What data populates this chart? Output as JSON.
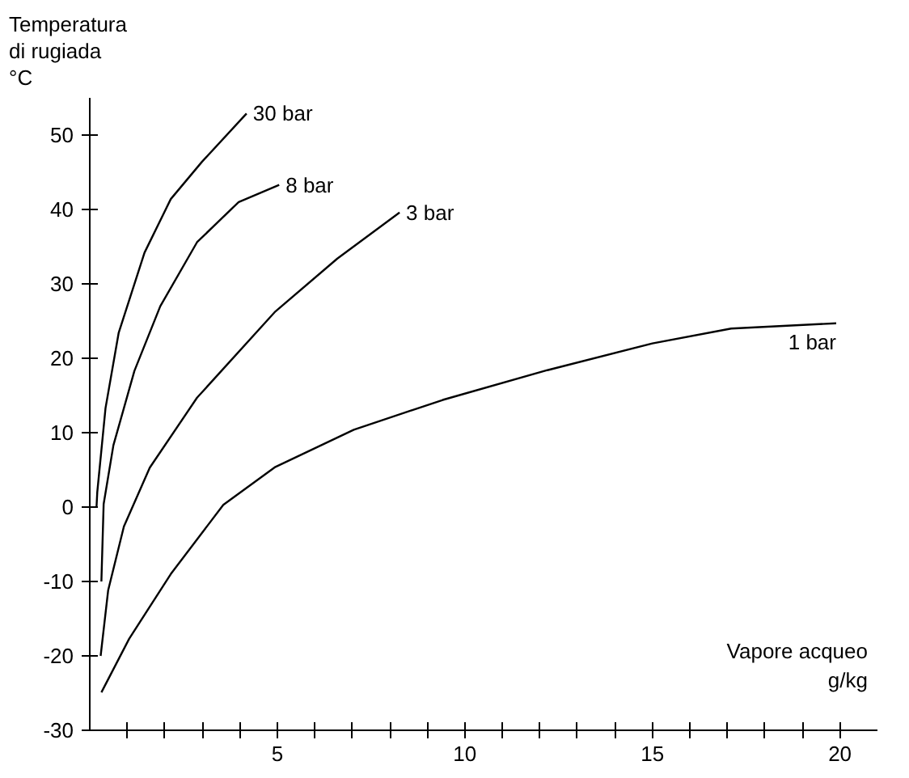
{
  "chart_data": {
    "type": "line",
    "ylabel": "Temperatura\ndi rugiada\n°C",
    "xlabel": "Vapore acqueo\ng/kg",
    "xlim": [
      0,
      21
    ],
    "ylim": [
      -30,
      55
    ],
    "xticks": [
      {
        "value": 1,
        "label": null
      },
      {
        "value": 2,
        "label": null
      },
      {
        "value": 3,
        "label": null
      },
      {
        "value": 4,
        "label": null
      },
      5,
      {
        "value": 6,
        "label": null
      },
      {
        "value": 7,
        "label": null
      },
      {
        "value": 8,
        "label": null
      },
      {
        "value": 9,
        "label": null
      },
      10,
      {
        "value": 11,
        "label": null
      },
      {
        "value": 12,
        "label": null
      },
      {
        "value": 13,
        "label": null
      },
      {
        "value": 14,
        "label": null
      },
      15,
      {
        "value": 16,
        "label": null
      },
      {
        "value": 17,
        "label": null
      },
      {
        "value": 18,
        "label": null
      },
      {
        "value": 19,
        "label": null
      },
      20
    ],
    "yticks": [
      -30,
      -20,
      -10,
      0,
      10,
      20,
      30,
      40,
      50
    ],
    "grid": false,
    "legend": false,
    "marker": "none",
    "line_style": "solid",
    "series": [
      {
        "name": "30 bar",
        "color": "#000000",
        "x": [
          0.18,
          0.2,
          0.42,
          0.77,
          1.46,
          2.16,
          2.99,
          4.18
        ],
        "values": [
          0,
          2,
          13.3,
          23.4,
          34.2,
          41.4,
          46.4,
          52.9
        ]
      },
      {
        "name": "8 bar",
        "color": "#000000",
        "x": [
          0.31,
          0.37,
          0.63,
          1.19,
          1.88,
          2.86,
          3.97,
          5.05
        ],
        "values": [
          -10,
          0.4,
          8.3,
          18.3,
          27,
          35.6,
          41,
          43.3
        ]
      },
      {
        "name": "3 bar",
        "color": "#000000",
        "x": [
          0.29,
          0.49,
          0.91,
          1.6,
          2.86,
          4.95,
          6.6,
          8.26
        ],
        "values": [
          -20,
          -11.2,
          -2.6,
          5.3,
          14.7,
          26.3,
          33.4,
          39.6
        ]
      },
      {
        "name": "1 bar",
        "color": "#000000",
        "x": [
          0.31,
          1.05,
          2.16,
          3.56,
          4.95,
          7.04,
          9.41,
          12.2,
          15,
          17.1,
          19.9
        ],
        "values": [
          -24.9,
          -17.7,
          -9,
          0.3,
          5.4,
          10.4,
          14.4,
          18.4,
          22,
          24,
          24.7
        ]
      }
    ]
  }
}
